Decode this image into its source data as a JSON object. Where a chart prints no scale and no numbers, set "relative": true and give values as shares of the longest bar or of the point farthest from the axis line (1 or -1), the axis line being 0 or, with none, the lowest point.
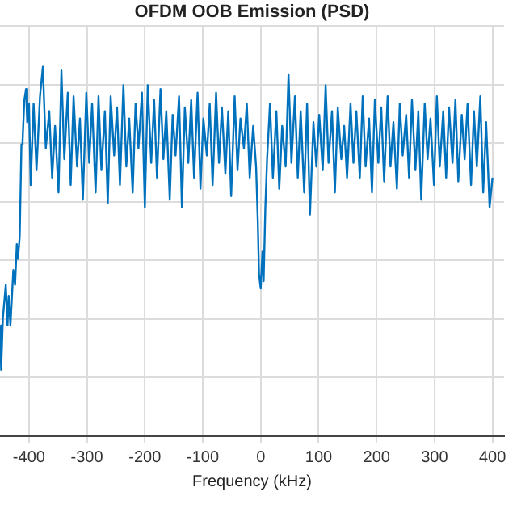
{
  "chart_data": {
    "type": "line",
    "title": "OFDM OOB Emission (PSD)",
    "xlabel": "Frequency (kHz)",
    "relative": true,
    "grid": true,
    "legend": false,
    "marker": "none",
    "line_style": "solid",
    "xlim": [
      -450,
      420
    ],
    "xticks": [
      -400,
      -300,
      -200,
      -100,
      0,
      100,
      200,
      300,
      400
    ],
    "tick_labels": "x",
    "series": [
      {
        "color": "#0072bd",
        "x": [
          -450,
          -448,
          -445,
          -440,
          -437,
          -435,
          -432,
          -427,
          -424,
          -421,
          -419,
          -416,
          -413,
          -411,
          -408,
          -405,
          -403,
          -400,
          -397,
          -392,
          -387,
          -381,
          -376,
          -371,
          -365,
          -360,
          -355,
          -349,
          -344,
          -339,
          -333,
          -328,
          -323,
          -317,
          -312,
          -307,
          -301,
          -296,
          -291,
          -285,
          -280,
          -275,
          -269,
          -264,
          -259,
          -253,
          -248,
          -243,
          -237,
          -232,
          -227,
          -221,
          -216,
          -211,
          -205,
          -200,
          -195,
          -189,
          -184,
          -179,
          -173,
          -168,
          -163,
          -157,
          -152,
          -147,
          -141,
          -136,
          -131,
          -125,
          -120,
          -115,
          -109,
          -104,
          -99,
          -93,
          -88,
          -83,
          -77,
          -72,
          -67,
          -61,
          -56,
          -51,
          -45,
          -40,
          -35,
          -29,
          -24,
          -19,
          -13,
          -8,
          -5,
          -3,
          0,
          3,
          5,
          8,
          11,
          16,
          21,
          27,
          32,
          37,
          43,
          48,
          53,
          59,
          64,
          69,
          75,
          80,
          85,
          91,
          96,
          101,
          107,
          112,
          117,
          123,
          128,
          133,
          139,
          144,
          149,
          155,
          160,
          165,
          171,
          176,
          181,
          187,
          192,
          197,
          203,
          208,
          213,
          219,
          224,
          229,
          235,
          240,
          245,
          251,
          256,
          261,
          267,
          272,
          277,
          283,
          288,
          293,
          299,
          304,
          309,
          315,
          320,
          325,
          331,
          336,
          341,
          347,
          352,
          357,
          363,
          368,
          373,
          379,
          384,
          389,
          395,
          400
        ],
        "values": [
          0.3,
          0.18,
          0.32,
          0.41,
          0.3,
          0.38,
          0.3,
          0.45,
          0.41,
          0.52,
          0.48,
          0.54,
          0.79,
          0.8,
          0.91,
          0.94,
          0.85,
          0.9,
          0.68,
          0.9,
          0.72,
          0.92,
          1.0,
          0.78,
          0.88,
          0.7,
          0.84,
          0.66,
          0.99,
          0.75,
          0.93,
          0.68,
          0.92,
          0.73,
          0.86,
          0.64,
          0.93,
          0.74,
          0.9,
          0.66,
          0.92,
          0.72,
          0.88,
          0.63,
          0.92,
          0.76,
          0.89,
          0.68,
          0.95,
          0.73,
          0.86,
          0.66,
          0.9,
          0.78,
          0.93,
          0.62,
          0.95,
          0.74,
          0.91,
          0.7,
          0.94,
          0.75,
          0.88,
          0.64,
          0.87,
          0.76,
          0.92,
          0.62,
          0.89,
          0.74,
          0.91,
          0.7,
          0.93,
          0.67,
          0.86,
          0.76,
          0.9,
          0.68,
          0.93,
          0.74,
          0.89,
          0.71,
          0.88,
          0.65,
          0.92,
          0.72,
          0.86,
          0.78,
          0.9,
          0.7,
          0.84,
          0.73,
          0.58,
          0.44,
          0.4,
          0.5,
          0.42,
          0.62,
          0.75,
          0.9,
          0.7,
          0.88,
          0.67,
          0.84,
          0.73,
          0.98,
          0.74,
          0.92,
          0.7,
          0.88,
          0.66,
          0.9,
          0.6,
          0.85,
          0.73,
          0.87,
          0.72,
          0.95,
          0.74,
          0.88,
          0.66,
          0.89,
          0.75,
          0.84,
          0.7,
          0.9,
          0.74,
          0.88,
          0.7,
          0.92,
          0.73,
          0.86,
          0.66,
          0.91,
          0.74,
          0.89,
          0.69,
          0.92,
          0.73,
          0.85,
          0.67,
          0.9,
          0.76,
          0.87,
          0.7,
          0.91,
          0.72,
          0.88,
          0.64,
          0.9,
          0.75,
          0.86,
          0.68,
          0.92,
          0.73,
          0.88,
          0.7,
          0.89,
          0.74,
          0.91,
          0.69,
          0.87,
          0.75,
          0.9,
          0.68,
          0.88,
          0.73,
          0.92,
          0.66,
          0.85,
          0.62,
          0.7
        ]
      }
    ]
  }
}
